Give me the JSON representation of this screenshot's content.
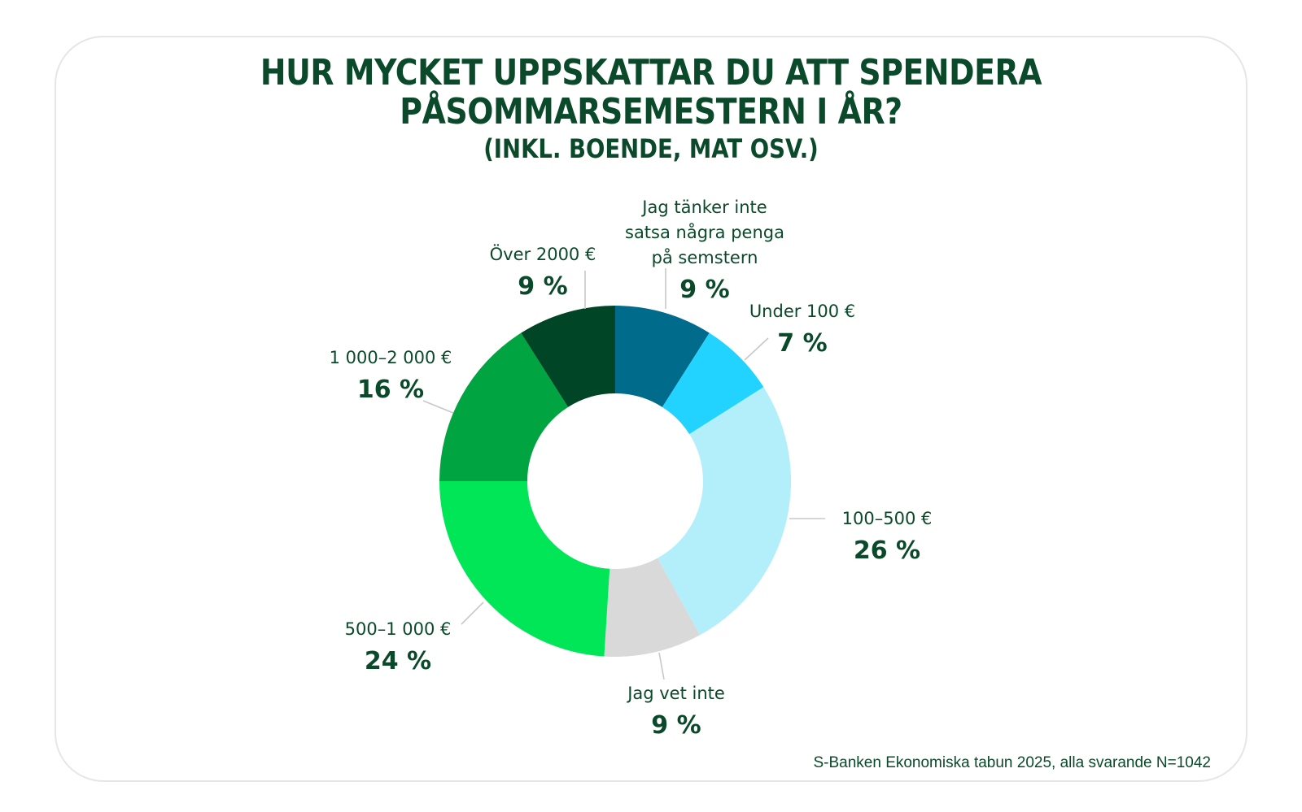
{
  "title": {
    "line1": "HUR MYCKET UPPSKATTAR DU ATT SPENDERA",
    "line2": "PÅSOMMARSEMESTERN I ÅR?",
    "subtitle": "(INKL. BOENDE, MAT OSV.)"
  },
  "source": "S-Banken Ekonomiska tabun 2025, alla svarande N=1042",
  "chart_data": {
    "type": "pie",
    "variant": "donut",
    "title": "HUR MYCKET UPPSKATTAR DU ATT SPENDERA PÅSOMMARSEMESTERN I ÅR? (INKL. BOENDE, MAT OSV.)",
    "unit": "%",
    "slices": [
      {
        "label": [
          "Jag tänker inte",
          "satsa några penga",
          "på semstern"
        ],
        "value": 9,
        "value_label": "9 %",
        "color": "#006b8a"
      },
      {
        "label": [
          "Under 100 €"
        ],
        "value": 7,
        "value_label": "7 %",
        "color": "#22d3ff"
      },
      {
        "label": [
          "100–500 €"
        ],
        "value": 26,
        "value_label": "26 %",
        "color": "#b3eefb"
      },
      {
        "label": [
          "Jag vet inte"
        ],
        "value": 9,
        "value_label": "9 %",
        "color": "#d9d9d9"
      },
      {
        "label": [
          "500–1 000 €"
        ],
        "value": 24,
        "value_label": "24 %",
        "color": "#00e657"
      },
      {
        "label": [
          "1 000–2 000 €"
        ],
        "value": 16,
        "value_label": "16 %",
        "color": "#00a441"
      },
      {
        "label": [
          "Över 2000 €"
        ],
        "value": 9,
        "value_label": "9 %",
        "color": "#004526"
      }
    ]
  }
}
